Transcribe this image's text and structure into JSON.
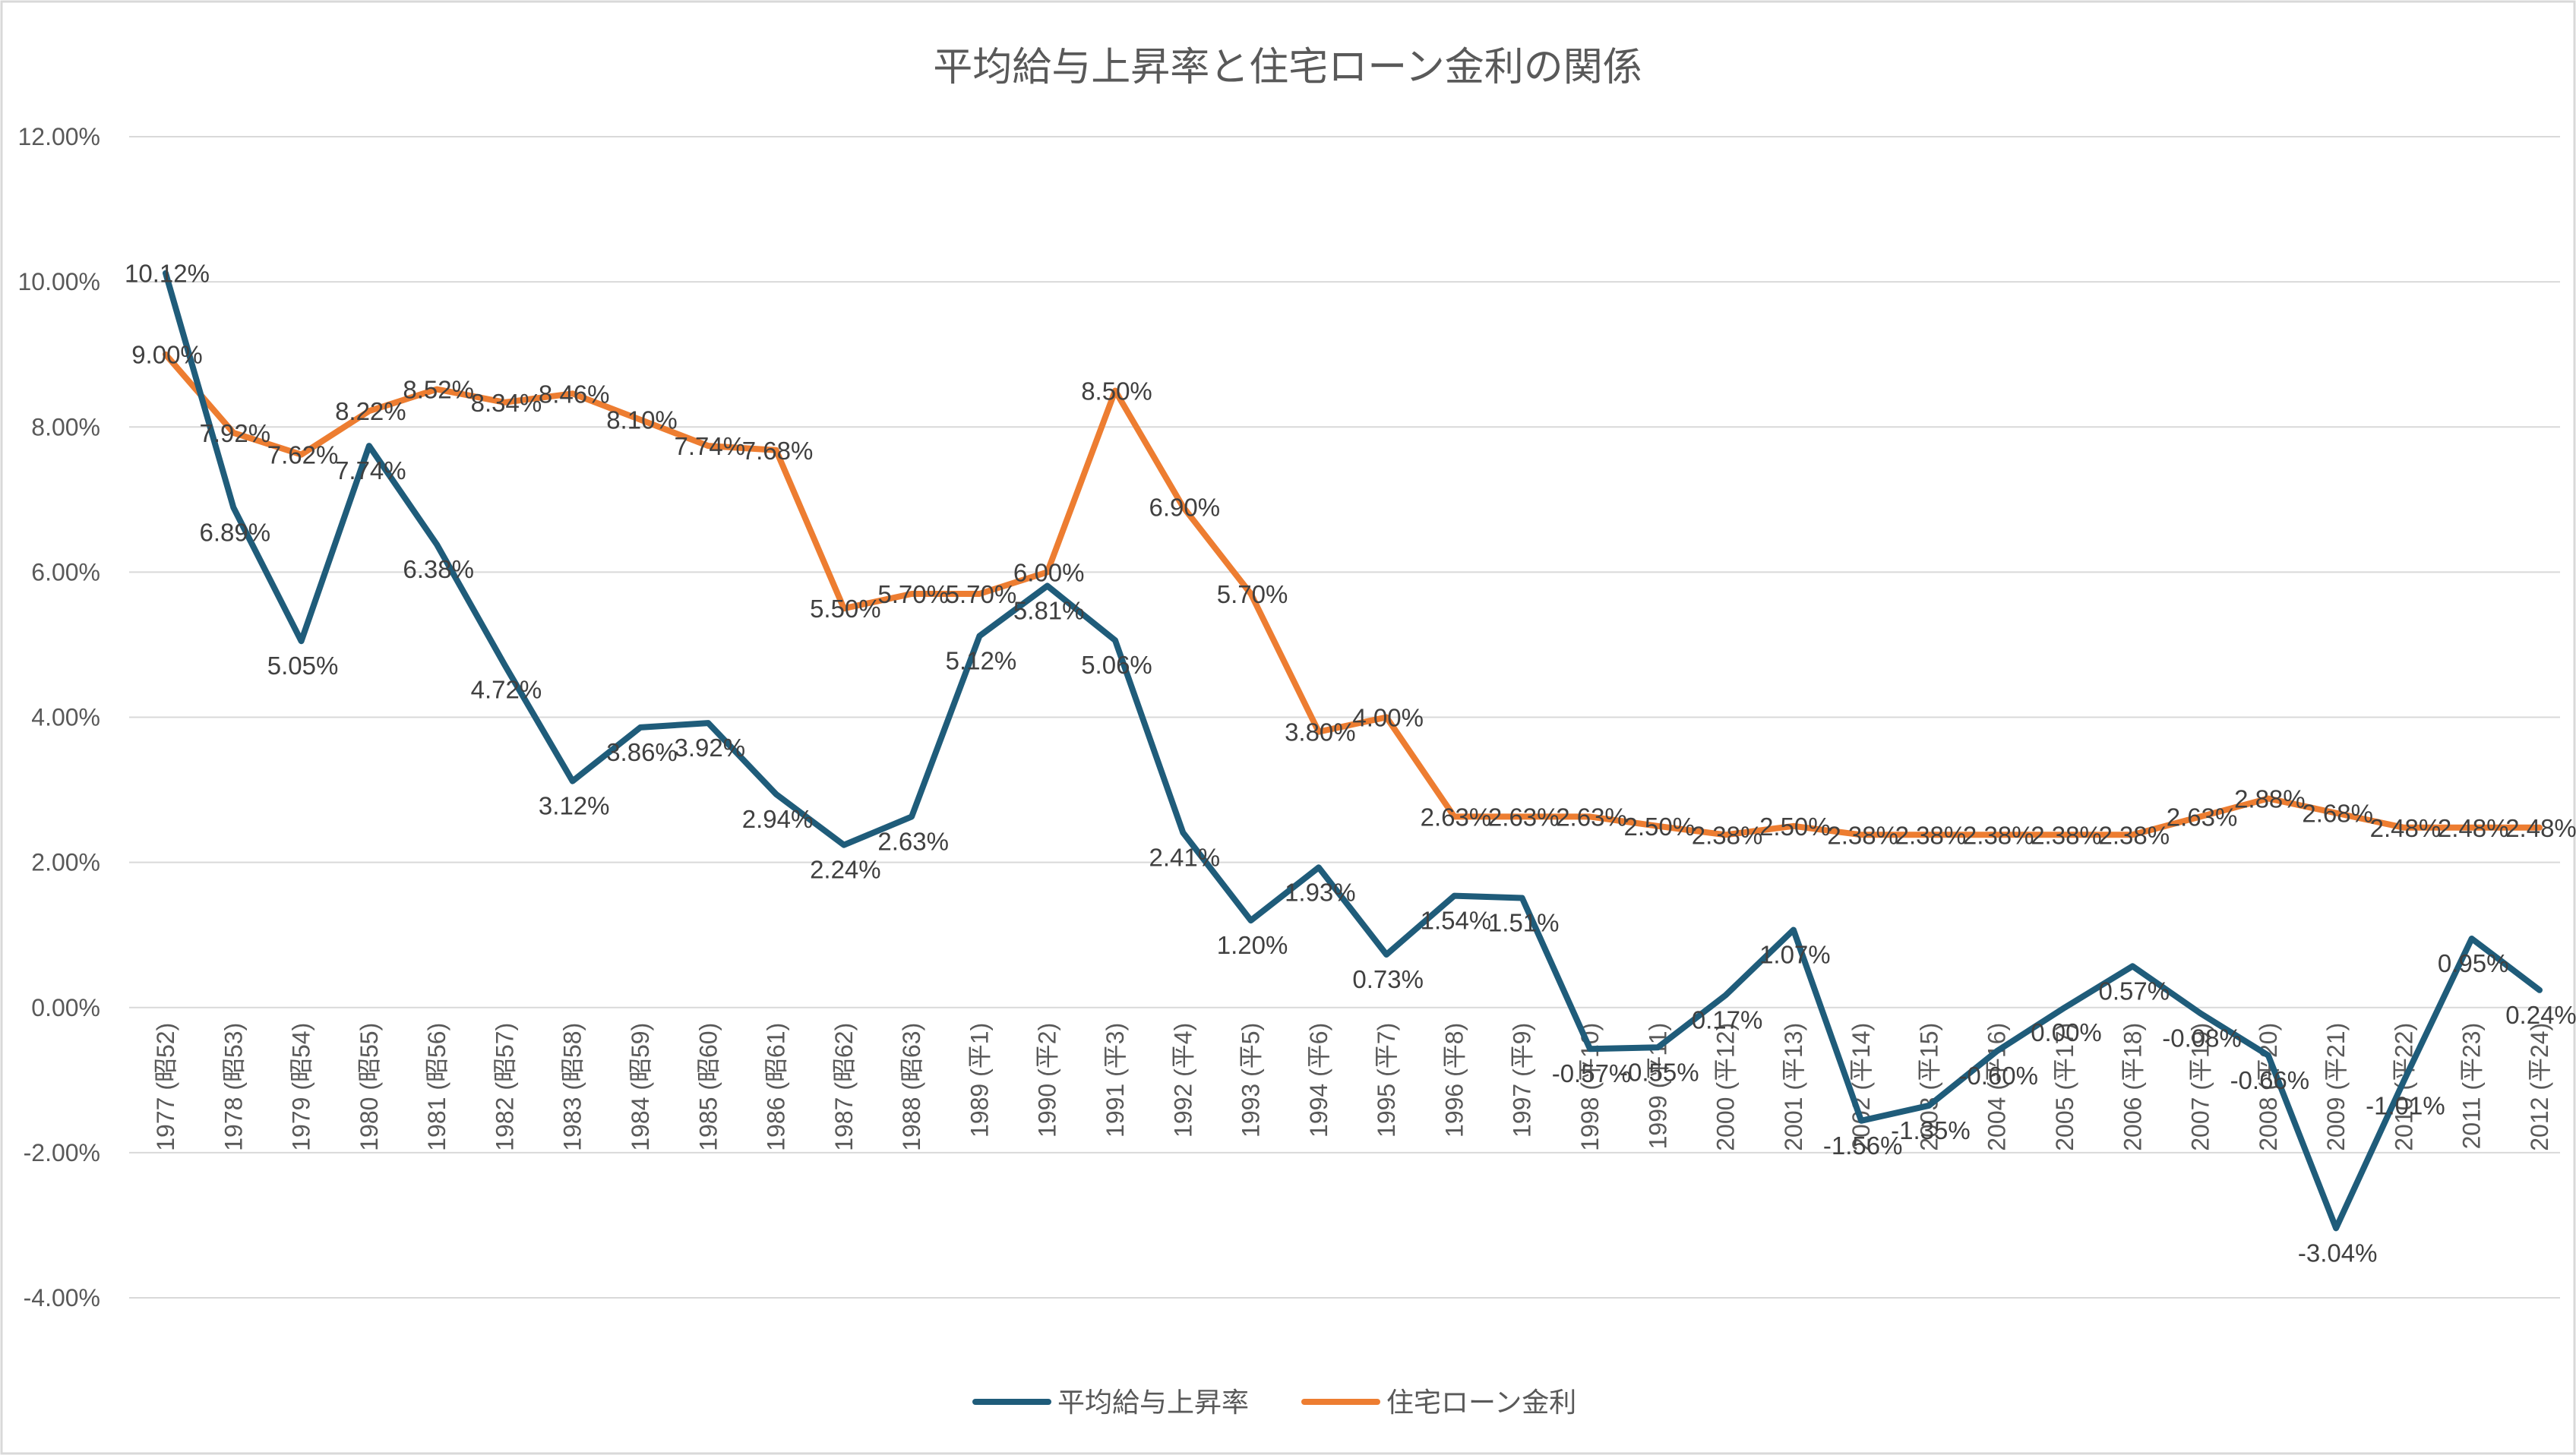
{
  "chart_data": {
    "type": "line",
    "title": "平均給与上昇率と住宅ローン金利の関係",
    "xlabel": "",
    "ylabel": "",
    "ylim": [
      -0.04,
      0.12
    ],
    "y_ticks": [
      0.12,
      0.1,
      0.08,
      0.06,
      0.04,
      0.02,
      0.0,
      -0.02,
      -0.04
    ],
    "y_tick_labels": [
      "12.00%",
      "10.00%",
      "8.00%",
      "6.00%",
      "4.00%",
      "2.00%",
      "0.00%",
      "-2.00%",
      "-4.00%"
    ],
    "grid": true,
    "legend_position": "bottom",
    "categories": [
      "1977 (昭52)",
      "1978 (昭53)",
      "1979 (昭54)",
      "1980 (昭55)",
      "1981 (昭56)",
      "1982 (昭57)",
      "1983 (昭58)",
      "1984 (昭59)",
      "1985 (昭60)",
      "1986 (昭61)",
      "1987 (昭62)",
      "1988 (昭63)",
      "1989 (平1)",
      "1990 (平2)",
      "1991 (平3)",
      "1992 (平4)",
      "1993 (平5)",
      "1994 (平6)",
      "1995 (平7)",
      "1996 (平8)",
      "1997 (平9)",
      "1998 (平10)",
      "1999 (平11)",
      "2000 (平12)",
      "2001 (平13)",
      "2002 (平14)",
      "2003 (平15)",
      "2004 (平16)",
      "2005 (平17)",
      "2006 (平18)",
      "2007 (平19)",
      "2008 (平20)",
      "2009 (平21)",
      "2010 (平22)",
      "2011 (平23)",
      "2012 (平24)"
    ],
    "series": [
      {
        "name": "平均給与上昇率",
        "color": "#1f5c7a",
        "values": [
          0.1012,
          0.0689,
          0.0505,
          0.0774,
          0.0638,
          0.0472,
          0.0312,
          0.0386,
          0.0392,
          0.0294,
          0.0224,
          0.0263,
          0.0512,
          0.0581,
          0.0506,
          0.0241,
          0.012,
          0.0193,
          0.0073,
          0.0154,
          0.0151,
          -0.0057,
          -0.0055,
          0.0017,
          0.0107,
          -0.0156,
          -0.0135,
          -0.006,
          0.0,
          0.0057,
          -0.0008,
          -0.0066,
          -0.0304,
          -0.0101,
          0.0095,
          0.0024
        ],
        "labels": [
          "10.12%",
          "6.89%",
          "5.05%",
          "7.74%",
          "6.38%",
          "4.72%",
          "3.12%",
          "3.86%",
          "3.92%",
          "2.94%",
          "2.24%",
          "2.63%",
          "5.12%",
          "5.81%",
          "5.06%",
          "2.41%",
          "1.20%",
          "1.93%",
          "0.73%",
          "1.54%",
          "1.51%",
          "-0.57%",
          "-0.55%",
          "0.17%",
          "1.07%",
          "-1.56%",
          "-1.35%",
          "-0.60%",
          "0.00%",
          "0.57%",
          "-0.08%",
          "-0.66%",
          "-3.04%",
          "-1.01%",
          "0.95%",
          "0.24%"
        ]
      },
      {
        "name": "住宅ローン金利",
        "color": "#ed7d31",
        "values": [
          0.09,
          0.0792,
          0.0762,
          0.0822,
          0.0852,
          0.0834,
          0.0846,
          0.081,
          0.0774,
          0.0768,
          0.055,
          0.057,
          0.057,
          0.06,
          0.085,
          0.069,
          0.057,
          0.038,
          0.04,
          0.0263,
          0.0263,
          0.0263,
          0.025,
          0.0238,
          0.025,
          0.0238,
          0.0238,
          0.0238,
          0.0238,
          0.0238,
          0.0263,
          0.0288,
          0.0268,
          0.0248,
          0.0248,
          0.0248
        ],
        "labels": [
          "9.00%",
          "7.92%",
          "7.62%",
          "8.22%",
          "8.52%",
          "8.34%",
          "8.46%",
          "8.10%",
          "7.74%",
          "7.68%",
          "5.50%",
          "5.70%",
          "5.70%",
          "6.00%",
          "8.50%",
          "6.90%",
          "5.70%",
          "3.80%",
          "4.00%",
          "2.63%",
          "2.63%",
          "2.63%",
          "2.50%",
          "2.38%",
          "2.50%",
          "2.38%",
          "2.38%",
          "2.38%",
          "2.38%",
          "2.38%",
          "2.63%",
          "2.88%",
          "2.68%",
          "2.48%",
          "2.48%",
          "2.48%"
        ]
      }
    ]
  }
}
